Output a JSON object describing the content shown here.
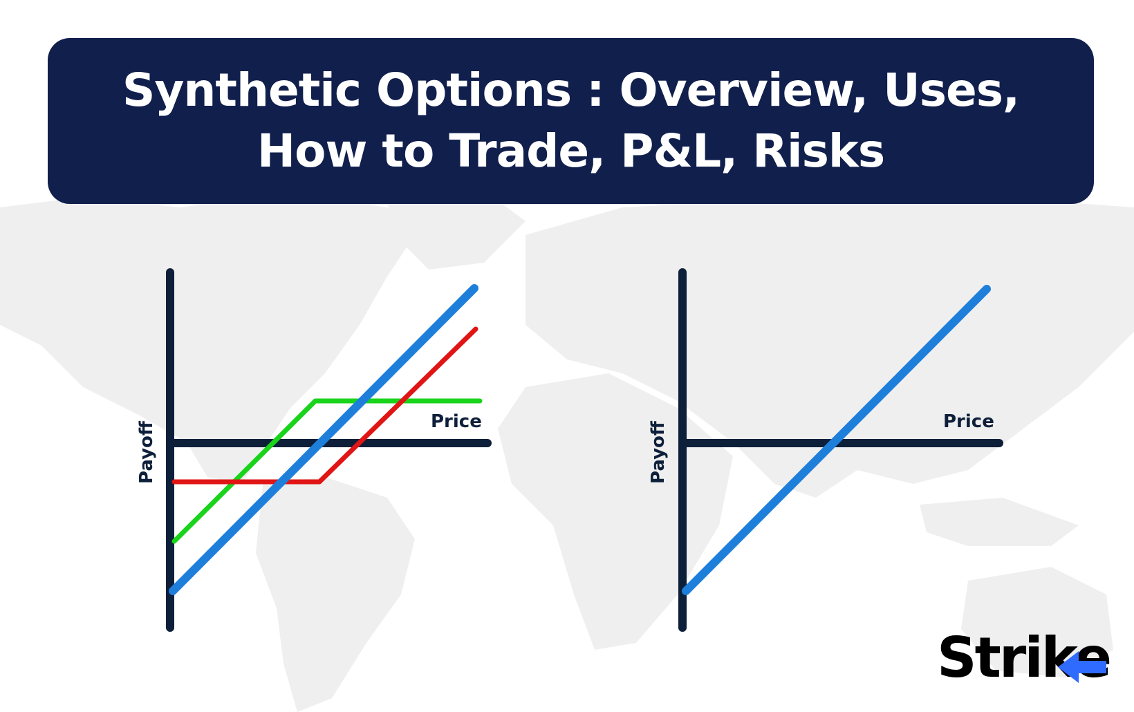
{
  "title": {
    "line1": "Synthetic Options : Overview, Uses,",
    "line2": "How to Trade, P&L, Risks"
  },
  "colors": {
    "title_bg": "#111f4d",
    "axis": "#0e1f3a",
    "blue_line": "#1e7fdb",
    "red_line": "#e01515",
    "green_line": "#19d41b",
    "map": "#efefef",
    "logo_accent": "#2f6bff"
  },
  "diagrams": [
    {
      "xlabel": "Price",
      "ylabel": "Payoff",
      "lines": [
        "blue",
        "red",
        "green"
      ]
    },
    {
      "xlabel": "Price",
      "ylabel": "Payoff",
      "lines": [
        "blue"
      ]
    }
  ],
  "logo": {
    "text": "Strike",
    "icon": "strike-arrow-e-logo"
  }
}
